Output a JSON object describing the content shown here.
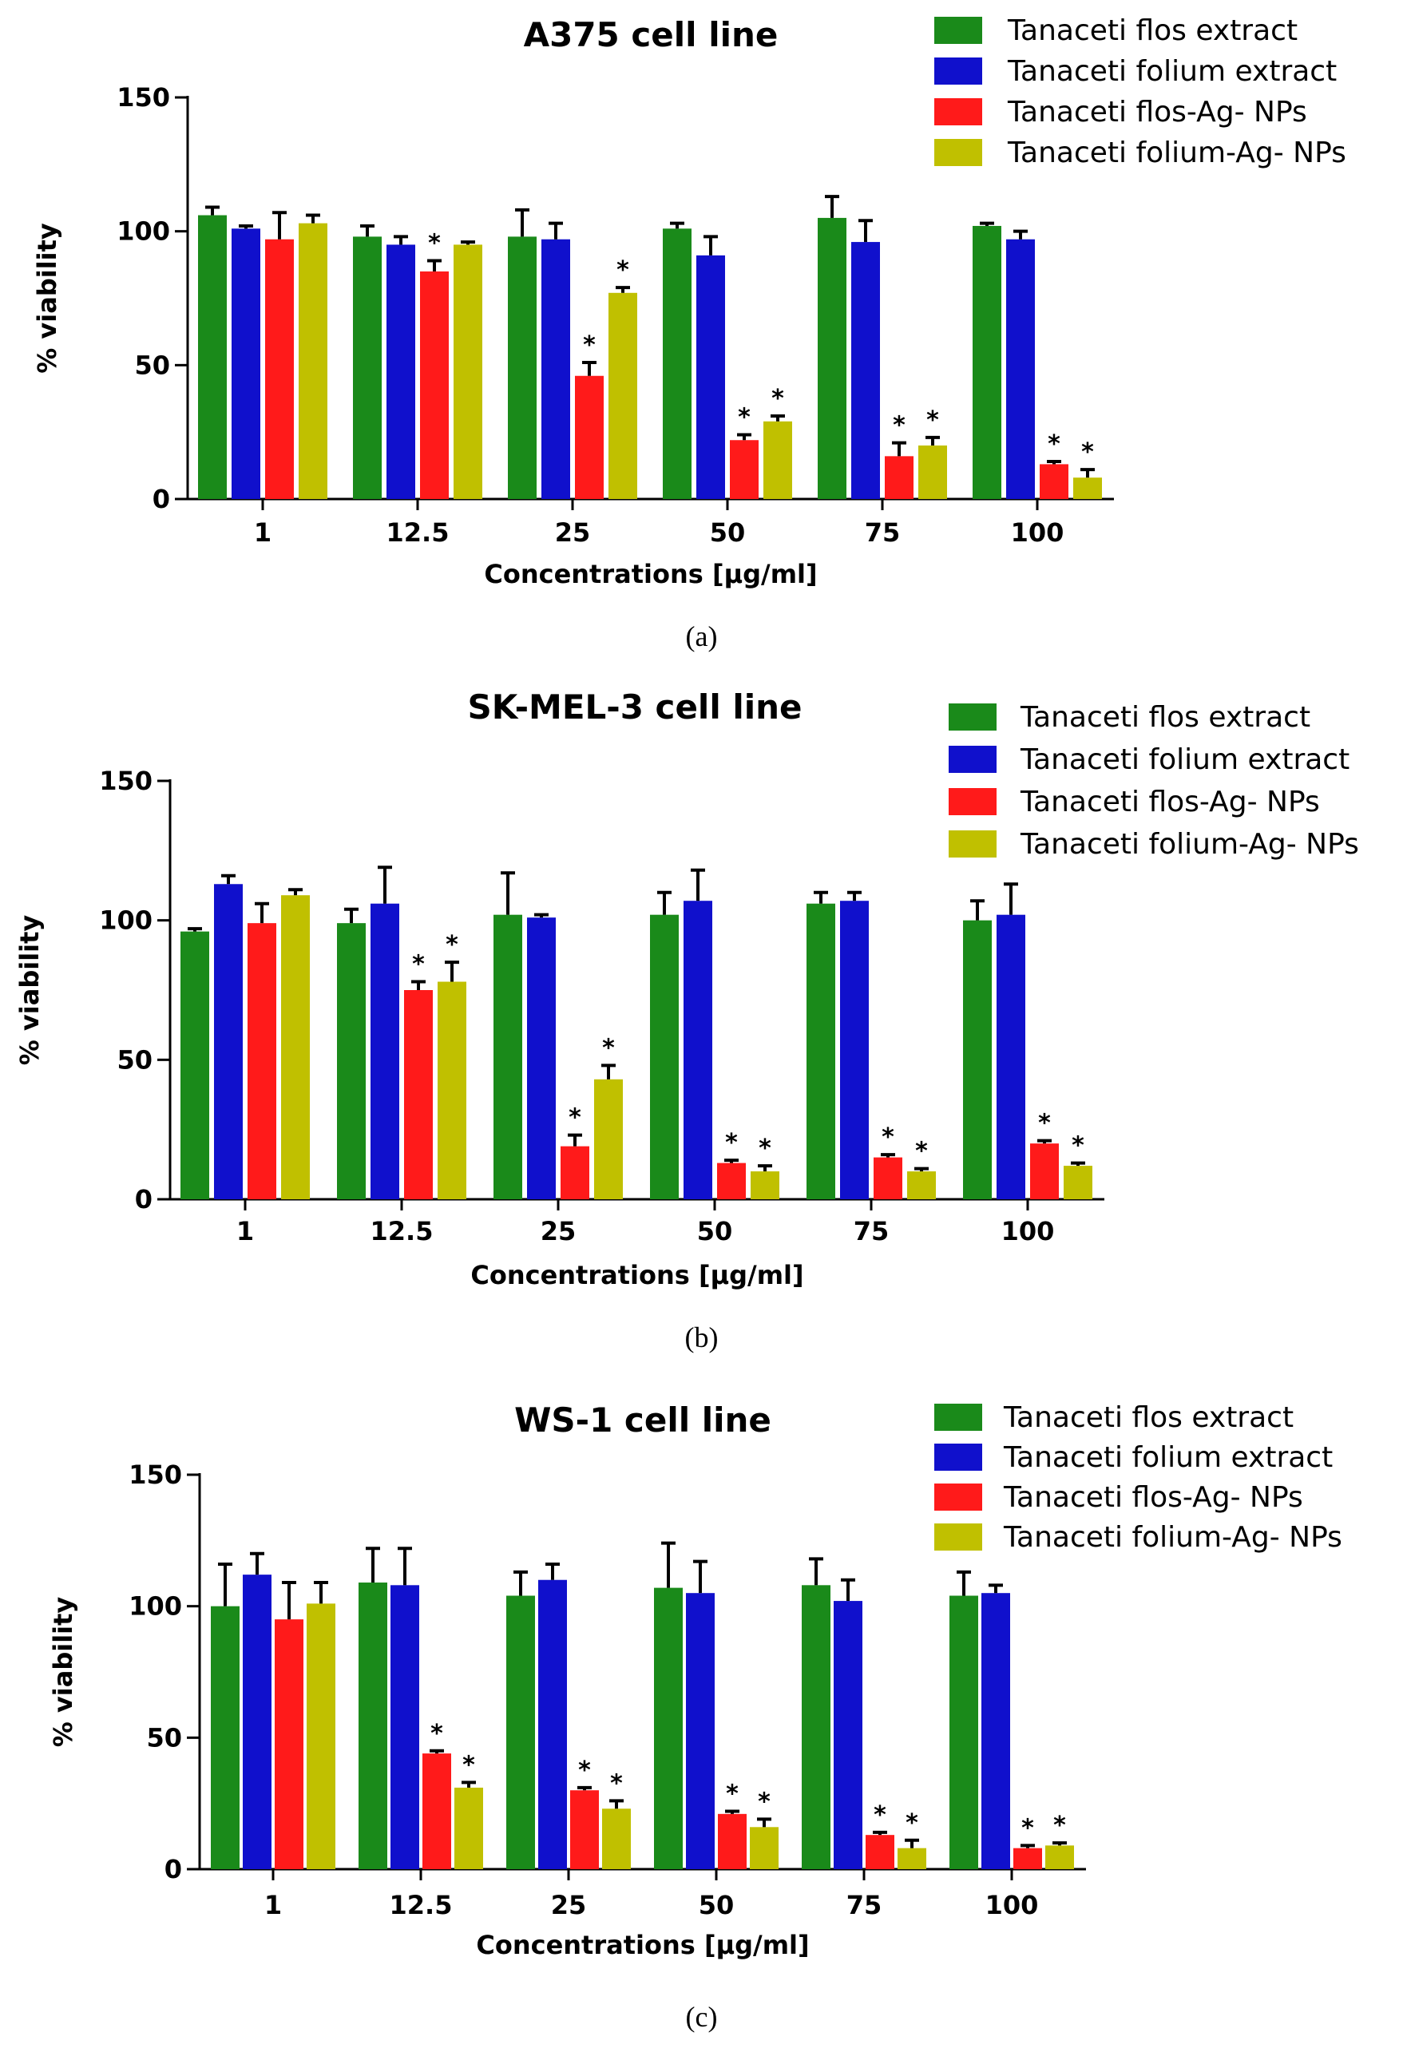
{
  "chart_data": [
    {
      "type": "bar",
      "title": "A375 cell line",
      "panel_label": "(a)",
      "xlabel": "Concentrations [μg/ml]",
      "ylabel": "% viability",
      "ylim": [
        0,
        150
      ],
      "yticks": [
        "0",
        "50",
        "100",
        "150"
      ],
      "categories": [
        "1",
        "12.5",
        "25",
        "50",
        "75",
        "100"
      ],
      "series": [
        {
          "name": "Tanaceti flos extract",
          "color": "#1a8a1a",
          "values": [
            106,
            98,
            98,
            101,
            105,
            102
          ],
          "errors": [
            3,
            4,
            10,
            2,
            8,
            1
          ],
          "stars": [
            false,
            false,
            false,
            false,
            false,
            false
          ]
        },
        {
          "name": "Tanaceti folium extract",
          "color": "#1010cc",
          "values": [
            101,
            95,
            97,
            91,
            96,
            97
          ],
          "errors": [
            1,
            3,
            6,
            7,
            8,
            3
          ],
          "stars": [
            false,
            false,
            false,
            false,
            false,
            false
          ]
        },
        {
          "name": "Tanaceti flos-Ag- NPs",
          "color": "#ff1a1a",
          "values": [
            97,
            85,
            46,
            22,
            16,
            13
          ],
          "errors": [
            10,
            4,
            5,
            2,
            5,
            1
          ],
          "stars": [
            false,
            true,
            true,
            true,
            true,
            true
          ]
        },
        {
          "name": "Tanaceti folium-Ag- NPs",
          "color": "#c0c000",
          "values": [
            103,
            95,
            77,
            29,
            20,
            8
          ],
          "errors": [
            3,
            1,
            2,
            2,
            3,
            3
          ],
          "stars": [
            false,
            false,
            true,
            true,
            true,
            true
          ]
        }
      ]
    },
    {
      "type": "bar",
      "title": "SK-MEL-3 cell line",
      "panel_label": "(b)",
      "xlabel": "Concentrations [μg/ml]",
      "ylabel": "% viability",
      "ylim": [
        0,
        150
      ],
      "yticks": [
        "0",
        "50",
        "100",
        "150"
      ],
      "categories": [
        "1",
        "12.5",
        "25",
        "50",
        "75",
        "100"
      ],
      "series": [
        {
          "name": "Tanaceti flos extract",
          "color": "#1a8a1a",
          "values": [
            96,
            99,
            102,
            102,
            106,
            100
          ],
          "errors": [
            1,
            5,
            15,
            8,
            4,
            7
          ],
          "stars": [
            false,
            false,
            false,
            false,
            false,
            false
          ]
        },
        {
          "name": "Tanaceti folium extract",
          "color": "#1010cc",
          "values": [
            113,
            106,
            101,
            107,
            107,
            102
          ],
          "errors": [
            3,
            13,
            1,
            11,
            3,
            11
          ],
          "stars": [
            false,
            false,
            false,
            false,
            false,
            false
          ]
        },
        {
          "name": "Tanaceti flos-Ag- NPs",
          "color": "#ff1a1a",
          "values": [
            99,
            75,
            19,
            13,
            15,
            20
          ],
          "errors": [
            7,
            3,
            4,
            1,
            1,
            1
          ],
          "stars": [
            false,
            true,
            true,
            true,
            true,
            true
          ]
        },
        {
          "name": "Tanaceti folium-Ag- NPs",
          "color": "#c0c000",
          "values": [
            109,
            78,
            43,
            10,
            10,
            12
          ],
          "errors": [
            2,
            7,
            5,
            2,
            1,
            1
          ],
          "stars": [
            false,
            true,
            true,
            true,
            true,
            true
          ]
        }
      ]
    },
    {
      "type": "bar",
      "title": "WS-1 cell line",
      "panel_label": "(c)",
      "xlabel": "Concentrations [μg/ml]",
      "ylabel": "% viability",
      "ylim": [
        0,
        150
      ],
      "yticks": [
        "0",
        "50",
        "100",
        "150"
      ],
      "categories": [
        "1",
        "12.5",
        "25",
        "50",
        "75",
        "100"
      ],
      "series": [
        {
          "name": "Tanaceti flos extract",
          "color": "#1a8a1a",
          "values": [
            100,
            109,
            104,
            107,
            108,
            104
          ],
          "errors": [
            16,
            13,
            9,
            17,
            10,
            9
          ],
          "stars": [
            false,
            false,
            false,
            false,
            false,
            false
          ]
        },
        {
          "name": "Tanaceti folium extract",
          "color": "#1010cc",
          "values": [
            112,
            108,
            110,
            105,
            102,
            105
          ],
          "errors": [
            8,
            14,
            6,
            12,
            8,
            3
          ],
          "stars": [
            false,
            false,
            false,
            false,
            false,
            false
          ]
        },
        {
          "name": "Tanaceti flos-Ag- NPs",
          "color": "#ff1a1a",
          "values": [
            95,
            44,
            30,
            21,
            13,
            8
          ],
          "errors": [
            14,
            1,
            1,
            1,
            1,
            1
          ],
          "stars": [
            false,
            true,
            true,
            true,
            true,
            true
          ]
        },
        {
          "name": "Tanaceti folium-Ag- NPs",
          "color": "#c0c000",
          "values": [
            101,
            31,
            23,
            16,
            8,
            9
          ],
          "errors": [
            8,
            2,
            3,
            3,
            3,
            1
          ],
          "stars": [
            false,
            true,
            true,
            true,
            true,
            true
          ]
        }
      ]
    }
  ]
}
